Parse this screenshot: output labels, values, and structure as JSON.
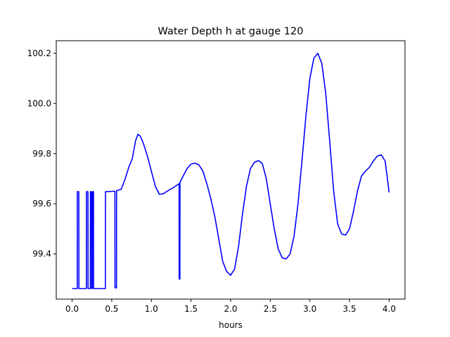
{
  "chart_data": {
    "type": "line",
    "title": "Water Depth h at gauge 120",
    "xlabel": "hours",
    "ylabel": "",
    "xlim": [
      -0.2,
      4.2
    ],
    "ylim": [
      99.22,
      100.25
    ],
    "grid": false,
    "xticks": [
      0.0,
      0.5,
      1.0,
      1.5,
      2.0,
      2.5,
      3.0,
      3.5,
      4.0
    ],
    "xtick_labels": [
      "0.0",
      "0.5",
      "1.0",
      "1.5",
      "2.0",
      "2.5",
      "3.0",
      "3.5",
      "4.0"
    ],
    "yticks": [
      99.4,
      99.6,
      99.8,
      100.0,
      100.2
    ],
    "ytick_labels": [
      "99.4",
      "99.6",
      "99.8",
      "100.0",
      "100.2"
    ],
    "series": [
      {
        "name": "",
        "color": "#0000ff",
        "points": [
          [
            0.0,
            99.262
          ],
          [
            0.065,
            99.262
          ],
          [
            0.066,
            99.648
          ],
          [
            0.085,
            99.648
          ],
          [
            0.086,
            99.262
          ],
          [
            0.18,
            99.262
          ],
          [
            0.181,
            99.648
          ],
          [
            0.2,
            99.648
          ],
          [
            0.201,
            99.262
          ],
          [
            0.23,
            99.262
          ],
          [
            0.231,
            99.648
          ],
          [
            0.245,
            99.648
          ],
          [
            0.246,
            99.262
          ],
          [
            0.255,
            99.262
          ],
          [
            0.256,
            99.648
          ],
          [
            0.27,
            99.648
          ],
          [
            0.271,
            99.262
          ],
          [
            0.42,
            99.262
          ],
          [
            0.421,
            99.648
          ],
          [
            0.54,
            99.65
          ],
          [
            0.541,
            99.265
          ],
          [
            0.56,
            99.265
          ],
          [
            0.561,
            99.652
          ],
          [
            0.62,
            99.658
          ],
          [
            0.67,
            99.7
          ],
          [
            0.72,
            99.75
          ],
          [
            0.76,
            99.78
          ],
          [
            0.8,
            99.85
          ],
          [
            0.83,
            99.877
          ],
          [
            0.86,
            99.87
          ],
          [
            0.9,
            99.84
          ],
          [
            0.95,
            99.79
          ],
          [
            1.0,
            99.73
          ],
          [
            1.05,
            99.67
          ],
          [
            1.1,
            99.638
          ],
          [
            1.15,
            99.64
          ],
          [
            1.2,
            99.65
          ],
          [
            1.28,
            99.665
          ],
          [
            1.35,
            99.68
          ],
          [
            1.351,
            99.3
          ],
          [
            1.36,
            99.3
          ],
          [
            1.361,
            99.685
          ],
          [
            1.4,
            99.71
          ],
          [
            1.45,
            99.74
          ],
          [
            1.5,
            99.758
          ],
          [
            1.55,
            99.762
          ],
          [
            1.6,
            99.755
          ],
          [
            1.65,
            99.73
          ],
          [
            1.7,
            99.68
          ],
          [
            1.75,
            99.62
          ],
          [
            1.8,
            99.55
          ],
          [
            1.85,
            99.46
          ],
          [
            1.9,
            99.37
          ],
          [
            1.95,
            99.33
          ],
          [
            2.0,
            99.315
          ],
          [
            2.05,
            99.34
          ],
          [
            2.1,
            99.43
          ],
          [
            2.15,
            99.56
          ],
          [
            2.2,
            99.67
          ],
          [
            2.25,
            99.74
          ],
          [
            2.3,
            99.765
          ],
          [
            2.35,
            99.772
          ],
          [
            2.4,
            99.76
          ],
          [
            2.45,
            99.7
          ],
          [
            2.5,
            99.6
          ],
          [
            2.55,
            99.5
          ],
          [
            2.6,
            99.42
          ],
          [
            2.65,
            99.385
          ],
          [
            2.7,
            99.38
          ],
          [
            2.75,
            99.4
          ],
          [
            2.8,
            99.47
          ],
          [
            2.85,
            99.6
          ],
          [
            2.9,
            99.77
          ],
          [
            2.95,
            99.95
          ],
          [
            3.0,
            100.1
          ],
          [
            3.05,
            100.18
          ],
          [
            3.1,
            100.2
          ],
          [
            3.15,
            100.16
          ],
          [
            3.2,
            100.04
          ],
          [
            3.25,
            99.85
          ],
          [
            3.3,
            99.65
          ],
          [
            3.35,
            99.52
          ],
          [
            3.4,
            99.48
          ],
          [
            3.45,
            99.475
          ],
          [
            3.5,
            99.5
          ],
          [
            3.55,
            99.57
          ],
          [
            3.6,
            99.65
          ],
          [
            3.65,
            99.71
          ],
          [
            3.7,
            99.73
          ],
          [
            3.75,
            99.745
          ],
          [
            3.8,
            99.77
          ],
          [
            3.85,
            99.79
          ],
          [
            3.9,
            99.795
          ],
          [
            3.95,
            99.77
          ],
          [
            4.0,
            99.645
          ]
        ]
      }
    ]
  }
}
